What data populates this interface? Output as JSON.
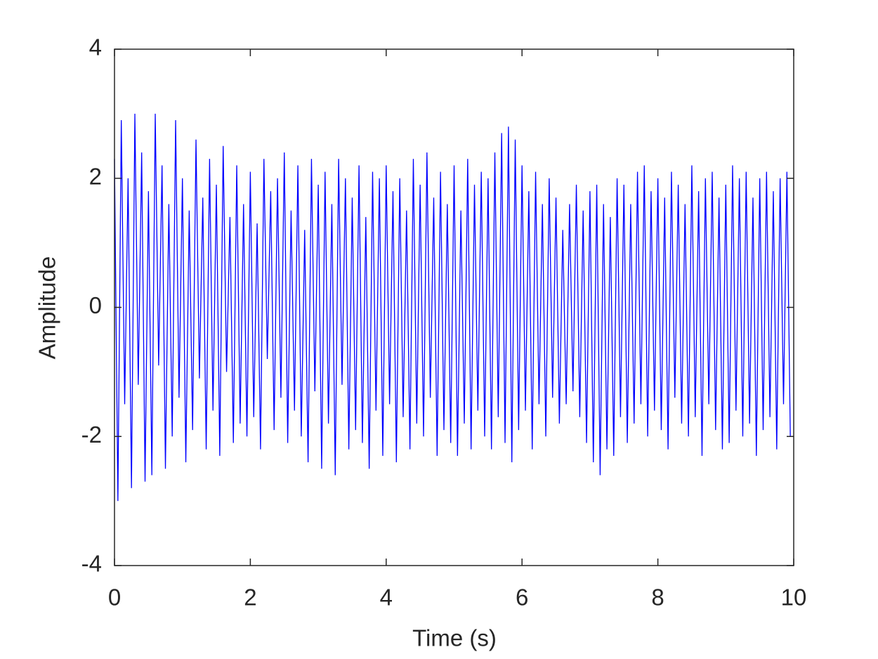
{
  "chart_data": {
    "type": "line",
    "x_label": "Time (s)",
    "y_label": "Amplitude",
    "xlim": [
      0,
      10
    ],
    "ylim": [
      -4,
      4
    ],
    "xticks": [
      0,
      2,
      4,
      6,
      8,
      10
    ],
    "yticks": [
      -4,
      -2,
      0,
      2,
      4
    ],
    "grid": false,
    "x": [
      0,
      0.05,
      0.1,
      0.15,
      0.2,
      0.25,
      0.3,
      0.35,
      0.4,
      0.45,
      0.5,
      0.55,
      0.6,
      0.65,
      0.7,
      0.75,
      0.8,
      0.85,
      0.9,
      0.95,
      1,
      1.05,
      1.1,
      1.15,
      1.2,
      1.25,
      1.3,
      1.35,
      1.4,
      1.45,
      1.5,
      1.55,
      1.6,
      1.65,
      1.7,
      1.75,
      1.8,
      1.85,
      1.9,
      1.95,
      2,
      2.05,
      2.1,
      2.15,
      2.2,
      2.25,
      2.3,
      2.35,
      2.4,
      2.45,
      2.5,
      2.55,
      2.6,
      2.65,
      2.7,
      2.75,
      2.8,
      2.85,
      2.9,
      2.95,
      3,
      3.05,
      3.1,
      3.15,
      3.2,
      3.25,
      3.3,
      3.35,
      3.4,
      3.45,
      3.5,
      3.55,
      3.6,
      3.65,
      3.7,
      3.75,
      3.8,
      3.85,
      3.9,
      3.95,
      4,
      4.05,
      4.1,
      4.15,
      4.2,
      4.25,
      4.3,
      4.35,
      4.4,
      4.45,
      4.5,
      4.55,
      4.6,
      4.65,
      4.7,
      4.75,
      4.8,
      4.85,
      4.9,
      4.95,
      5,
      5.05,
      5.1,
      5.15,
      5.2,
      5.25,
      5.3,
      5.35,
      5.4,
      5.45,
      5.5,
      5.55,
      5.6,
      5.65,
      5.7,
      5.75,
      5.8,
      5.85,
      5.9,
      5.95,
      6,
      6.05,
      6.1,
      6.15,
      6.2,
      6.25,
      6.3,
      6.35,
      6.4,
      6.45,
      6.5,
      6.55,
      6.6,
      6.65,
      6.7,
      6.75,
      6.8,
      6.85,
      6.9,
      6.95,
      7,
      7.05,
      7.1,
      7.15,
      7.2,
      7.25,
      7.3,
      7.35,
      7.4,
      7.45,
      7.5,
      7.55,
      7.6,
      7.65,
      7.7,
      7.75,
      7.8,
      7.85,
      7.9,
      7.95,
      8,
      8.05,
      8.1,
      8.15,
      8.2,
      8.25,
      8.3,
      8.35,
      8.4,
      8.45,
      8.5,
      8.55,
      8.6,
      8.65,
      8.7,
      8.75,
      8.8,
      8.85,
      8.9,
      8.95,
      9,
      9.05,
      9.1,
      9.15,
      9.2,
      9.25,
      9.3,
      9.35,
      9.4,
      9.45,
      9.5,
      9.55,
      9.6,
      9.65,
      9.7,
      9.75,
      9.8,
      9.85,
      9.9,
      9.95,
      10
    ],
    "series": [
      {
        "color": "#0000ff",
        "values": [
          2.3,
          -3.0,
          2.9,
          -1.5,
          2.0,
          -2.8,
          3.0,
          -1.2,
          2.4,
          -2.7,
          1.8,
          -2.6,
          3.0,
          -0.9,
          2.2,
          -2.5,
          1.6,
          -2.0,
          2.9,
          -1.4,
          2.0,
          -2.4,
          1.5,
          -1.9,
          2.6,
          -1.1,
          1.7,
          -2.2,
          2.3,
          -1.6,
          1.9,
          -2.3,
          2.5,
          -1.0,
          1.4,
          -2.1,
          2.2,
          -1.8,
          1.6,
          -2.0,
          2.1,
          -1.7,
          1.3,
          -2.2,
          2.3,
          -0.8,
          1.8,
          -1.9,
          2.0,
          -1.4,
          2.4,
          -2.1,
          1.5,
          -1.6,
          2.2,
          -2.0,
          1.2,
          -2.4,
          2.3,
          -1.3,
          1.9,
          -2.5,
          2.1,
          -1.8,
          1.6,
          -2.6,
          2.3,
          -1.2,
          2.0,
          -2.2,
          1.7,
          -1.9,
          2.2,
          -2.1,
          1.4,
          -2.5,
          2.1,
          -1.6,
          2.0,
          -2.3,
          2.2,
          -1.5,
          1.8,
          -2.4,
          2.0,
          -1.7,
          1.5,
          -2.2,
          2.3,
          -1.8,
          1.9,
          -2.0,
          2.4,
          -1.4,
          1.7,
          -2.3,
          2.1,
          -1.9,
          1.6,
          -2.1,
          2.2,
          -2.3,
          1.5,
          -1.8,
          2.3,
          -2.2,
          1.9,
          -1.6,
          2.1,
          -2.0,
          2.0,
          -2.2,
          2.4,
          -1.7,
          2.7,
          -2.1,
          2.8,
          -2.4,
          2.6,
          -1.9,
          2.2,
          -1.6,
          1.8,
          -2.2,
          2.1,
          -1.5,
          1.6,
          -2.0,
          2.0,
          -1.4,
          1.7,
          -1.8,
          1.2,
          -1.5,
          1.6,
          -1.3,
          1.9,
          -1.7,
          1.5,
          -2.1,
          1.8,
          -2.4,
          1.9,
          -2.6,
          1.6,
          -2.2,
          1.4,
          -2.3,
          2.0,
          -1.7,
          1.9,
          -2.1,
          1.6,
          -1.8,
          2.1,
          -1.5,
          2.2,
          -2.0,
          1.8,
          -1.6,
          2.0,
          -1.9,
          1.7,
          -2.2,
          2.1,
          -1.4,
          1.9,
          -1.8,
          1.6,
          -2.0,
          2.2,
          -1.7,
          1.8,
          -2.3,
          2.0,
          -1.5,
          2.1,
          -1.9,
          1.7,
          -2.2,
          1.9,
          -2.1,
          2.2,
          -1.6,
          2.0,
          -2.0,
          2.1,
          -1.8,
          1.7,
          -2.3,
          2.0,
          -1.9,
          2.1,
          -1.7,
          1.8,
          -2.2,
          2.0,
          -1.5,
          2.1,
          -2.0,
          -2.0
        ]
      }
    ]
  }
}
